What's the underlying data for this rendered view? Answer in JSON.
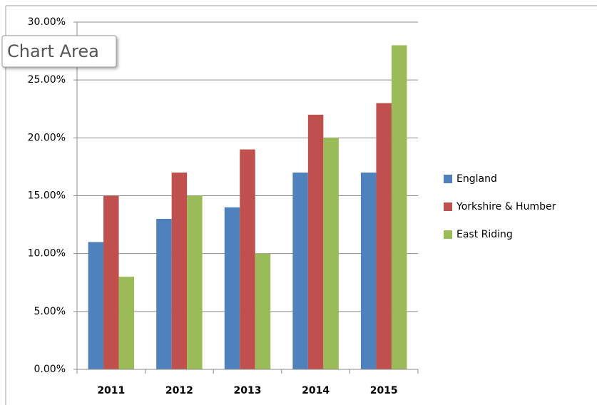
{
  "chart_data": {
    "type": "bar",
    "tooltip": "Chart Area",
    "categories": [
      "2011",
      "2012",
      "2013",
      "2014",
      "2015"
    ],
    "series": [
      {
        "name": "England",
        "color": "#4f81bd",
        "values": [
          11,
          13,
          14,
          17,
          17
        ]
      },
      {
        "name": "Yorkshire & Humber",
        "color": "#c0504d",
        "values": [
          15,
          17,
          19,
          22,
          23
        ]
      },
      {
        "name": "East Riding",
        "color": "#9bbb59",
        "values": [
          8,
          15,
          10,
          20,
          28
        ]
      }
    ],
    "ylim": [
      0,
      30
    ],
    "yticks": [
      {
        "value": 0,
        "label": "0.00%"
      },
      {
        "value": 5,
        "label": "5.00%"
      },
      {
        "value": 10,
        "label": "10.00%"
      },
      {
        "value": 15,
        "label": "15.00%"
      },
      {
        "value": 20,
        "label": "20.00%"
      },
      {
        "value": 25,
        "label": "25.00%"
      },
      {
        "value": 30,
        "label": "30.00%"
      }
    ],
    "grid": true,
    "legend": "right"
  }
}
